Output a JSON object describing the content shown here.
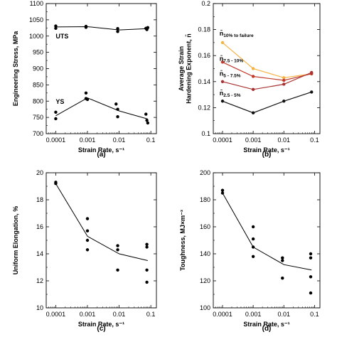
{
  "chart_data": [
    {
      "type": "scatter",
      "panel_label": "(a)",
      "xlabel": "Strain Rate, s⁻¹",
      "ylabel": "Engineering Stress, MPa",
      "x_scale": "log",
      "xlim": [
        5e-05,
        0.15
      ],
      "ylim": [
        700,
        1100
      ],
      "x_ticks": [
        0.0001,
        0.001,
        0.01,
        0.1
      ],
      "x_tick_labels": [
        "0.0001",
        "0.001",
        "0.01",
        "0.1"
      ],
      "y_ticks": [
        700,
        750,
        800,
        850,
        900,
        950,
        1000,
        1050,
        1100
      ],
      "y_tick_labels": [
        "700",
        "750",
        "800",
        "850",
        "900",
        "950",
        "1000",
        "1050",
        "1100"
      ],
      "series": [
        {
          "name": "UTS",
          "label_x": 0.0001,
          "label_y": 993,
          "line_x": [
            0.0001,
            0.001,
            0.01,
            0.08
          ],
          "line_y": [
            1028,
            1029,
            1019,
            1023
          ],
          "points": [
            [
              0.0001,
              1031
            ],
            [
              0.0001,
              1024
            ],
            [
              0.0009,
              1030
            ],
            [
              0.0009,
              1027
            ],
            [
              0.009,
              1023
            ],
            [
              0.009,
              1014
            ],
            [
              0.07,
              1024
            ],
            [
              0.075,
              1020
            ],
            [
              0.08,
              1026
            ]
          ]
        },
        {
          "name": "YS",
          "label_x": 0.0001,
          "label_y": 792,
          "line_x": [
            0.0001,
            0.001,
            0.01,
            0.08
          ],
          "line_y": [
            755,
            810,
            770,
            745
          ],
          "points": [
            [
              0.0001,
              766
            ],
            [
              0.0001,
              746
            ],
            [
              0.0009,
              825
            ],
            [
              0.0009,
              808
            ],
            [
              0.001,
              805
            ],
            [
              0.008,
              791
            ],
            [
              0.009,
              775
            ],
            [
              0.009,
              752
            ],
            [
              0.07,
              760
            ],
            [
              0.075,
              741
            ],
            [
              0.08,
              733
            ]
          ]
        }
      ]
    },
    {
      "type": "line",
      "panel_label": "(b)",
      "xlabel": "Strain Rate, s⁻¹",
      "ylabel": "Average Strain Hardening Exponent, n̄",
      "x_scale": "log",
      "xlim": [
        5e-05,
        0.15
      ],
      "ylim": [
        0.1,
        0.2
      ],
      "x_ticks": [
        0.0001,
        0.001,
        0.01,
        0.1
      ],
      "x_tick_labels": [
        "0.0001",
        "0.001",
        "0.01",
        "0.1"
      ],
      "y_ticks": [
        0.1,
        0.12,
        0.14,
        0.16,
        0.18,
        0.2
      ],
      "y_tick_labels": [
        "0.1",
        "0.12",
        "0.14",
        "0.16",
        "0.18",
        "0.2"
      ],
      "series": [
        {
          "name": "n̄",
          "subscript": "10% to failure",
          "color": "#f5b342",
          "label_x": 8e-05,
          "label_y": 0.1755,
          "x": [
            0.0001,
            0.001,
            0.01,
            0.08
          ],
          "y": [
            0.17,
            0.15,
            0.143,
            0.146
          ]
        },
        {
          "name": "n̄",
          "subscript": "7.5 - 10%",
          "color": "#c0392b",
          "label_x": 8e-05,
          "label_y": 0.156,
          "x": [
            0.0001,
            0.001,
            0.01,
            0.08
          ],
          "y": [
            0.155,
            0.144,
            0.141,
            0.146
          ]
        },
        {
          "name": "n̄",
          "subscript": "5 - 7.5%",
          "color": "#a83232",
          "label_x": 8e-05,
          "label_y": 0.1445,
          "x": [
            0.0001,
            0.001,
            0.01,
            0.08
          ],
          "y": [
            0.14,
            0.134,
            0.138,
            0.147
          ]
        },
        {
          "name": "n̄",
          "subscript": "2.5 - 5%",
          "color": "#111111",
          "label_x": 8e-05,
          "label_y": 0.1295,
          "x": [
            0.0001,
            0.001,
            0.01,
            0.08
          ],
          "y": [
            0.125,
            0.116,
            0.125,
            0.132
          ]
        }
      ]
    },
    {
      "type": "scatter",
      "panel_label": "(c)",
      "xlabel": "Strain Rate, s⁻¹",
      "ylabel": "Uniform Elongation, %",
      "x_scale": "log",
      "xlim": [
        5e-05,
        0.15
      ],
      "ylim": [
        10,
        20
      ],
      "x_ticks": [
        0.0001,
        0.001,
        0.01,
        0.1
      ],
      "x_tick_labels": [
        "0.0001",
        "0.001",
        "0.01",
        "0.1"
      ],
      "y_ticks": [
        10,
        12,
        14,
        16,
        18,
        20
      ],
      "y_tick_labels": [
        "10",
        "12",
        "14",
        "16",
        "18",
        "20"
      ],
      "line_x": [
        0.0001,
        0.001,
        0.01,
        0.08
      ],
      "line_y": [
        19.2,
        15.3,
        14.0,
        13.5
      ],
      "points": [
        [
          0.0001,
          19.3
        ],
        [
          0.0001,
          19.2
        ],
        [
          0.001,
          16.6
        ],
        [
          0.001,
          15.7
        ],
        [
          0.001,
          15.0
        ],
        [
          0.001,
          14.3
        ],
        [
          0.009,
          14.6
        ],
        [
          0.009,
          14.3
        ],
        [
          0.009,
          12.8
        ],
        [
          0.075,
          14.7
        ],
        [
          0.075,
          14.5
        ],
        [
          0.075,
          12.8
        ],
        [
          0.075,
          11.9
        ]
      ]
    },
    {
      "type": "scatter",
      "panel_label": "(d)",
      "xlabel": "Strain Rate, s⁻¹",
      "ylabel": "Toughness, MJ×m⁻³",
      "x_scale": "log",
      "xlim": [
        5e-05,
        0.15
      ],
      "ylim": [
        100,
        200
      ],
      "x_ticks": [
        0.0001,
        0.001,
        0.01,
        0.1
      ],
      "x_tick_labels": [
        "0.0001",
        "0.001",
        "0.01",
        "0.1"
      ],
      "y_ticks": [
        100,
        120,
        140,
        160,
        180,
        200
      ],
      "y_tick_labels": [
        "100",
        "120",
        "140",
        "160",
        "180",
        "200"
      ],
      "line_x": [
        0.0001,
        0.001,
        0.01,
        0.08
      ],
      "line_y": [
        185,
        145,
        132,
        128
      ],
      "points": [
        [
          0.0001,
          187
        ],
        [
          0.0001,
          185
        ],
        [
          0.001,
          160
        ],
        [
          0.001,
          151
        ],
        [
          0.001,
          145
        ],
        [
          0.001,
          138
        ],
        [
          0.009,
          137
        ],
        [
          0.009,
          135
        ],
        [
          0.009,
          122
        ],
        [
          0.075,
          140
        ],
        [
          0.075,
          137
        ],
        [
          0.075,
          123
        ],
        [
          0.075,
          111
        ]
      ]
    }
  ]
}
